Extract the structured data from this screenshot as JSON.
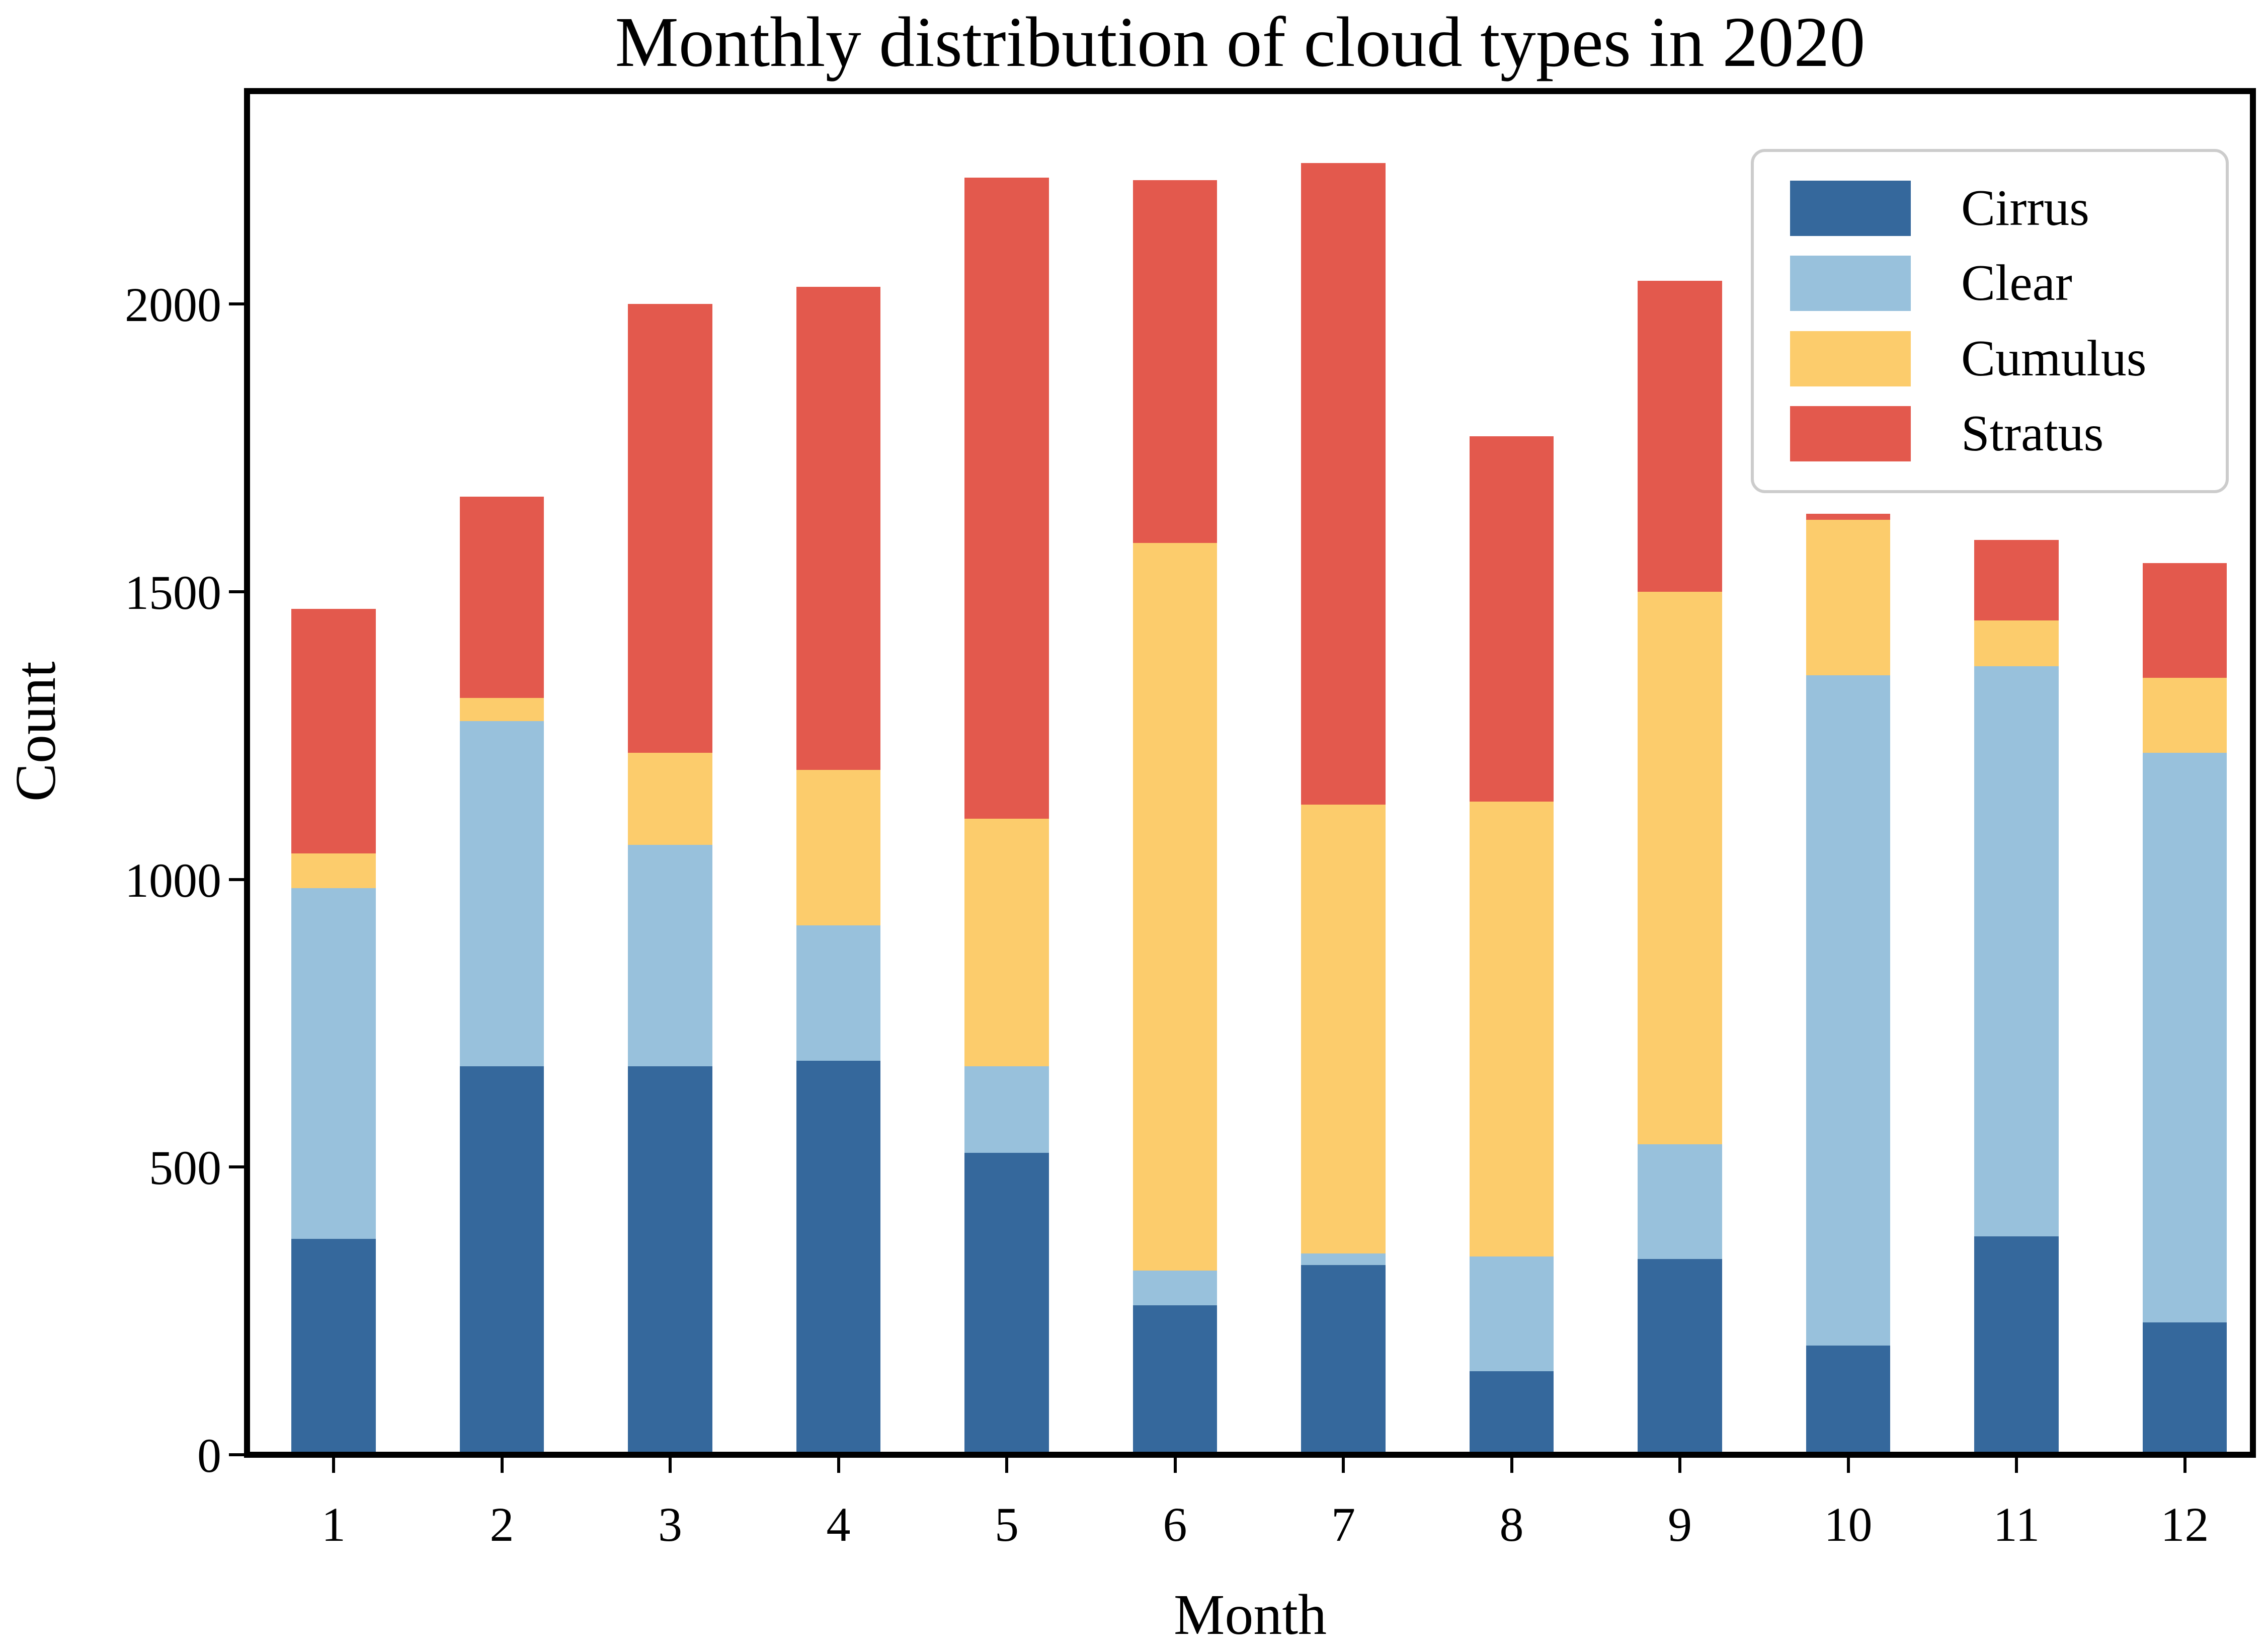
{
  "title": "Monthly distribution of cloud types in 2020",
  "chart_data": {
    "type": "bar",
    "stacked": true,
    "title": "Monthly distribution of cloud types in 2020",
    "xlabel": "Month",
    "ylabel": "Count",
    "categories": [
      "1",
      "2",
      "3",
      "4",
      "5",
      "6",
      "7",
      "8",
      "9",
      "10",
      "11",
      "12"
    ],
    "series": [
      {
        "name": "Cirrus",
        "color": "#35689C",
        "values": [
          375,
          675,
          675,
          685,
          525,
          260,
          330,
          145,
          340,
          190,
          380,
          230
        ]
      },
      {
        "name": "Clear",
        "color": "#98C1DC",
        "values": [
          610,
          600,
          385,
          235,
          150,
          60,
          20,
          200,
          200,
          1165,
          990,
          990
        ]
      },
      {
        "name": "Cumulus",
        "color": "#FCCC6C",
        "values": [
          60,
          40,
          160,
          270,
          430,
          1265,
          780,
          790,
          960,
          270,
          80,
          130
        ]
      },
      {
        "name": "Stratus",
        "color": "#E3594D",
        "values": [
          425,
          350,
          780,
          840,
          1115,
          630,
          1115,
          635,
          540,
          10,
          140,
          200
        ]
      }
    ],
    "totals": [
      1470,
      1665,
      2000,
      2030,
      2220,
      2215,
      2245,
      1770,
      2040,
      1635,
      1590,
      1550
    ],
    "ylim": [
      0,
      2370
    ],
    "yticks": [
      0,
      500,
      1000,
      1500,
      2000
    ],
    "grid": false,
    "legend_position": "upper right",
    "bar_width_fraction": 0.5
  },
  "colors": {
    "background": "#FFFFFF",
    "spine": "#000000",
    "legend_border": "#CCCCCC",
    "text": "#000000"
  }
}
